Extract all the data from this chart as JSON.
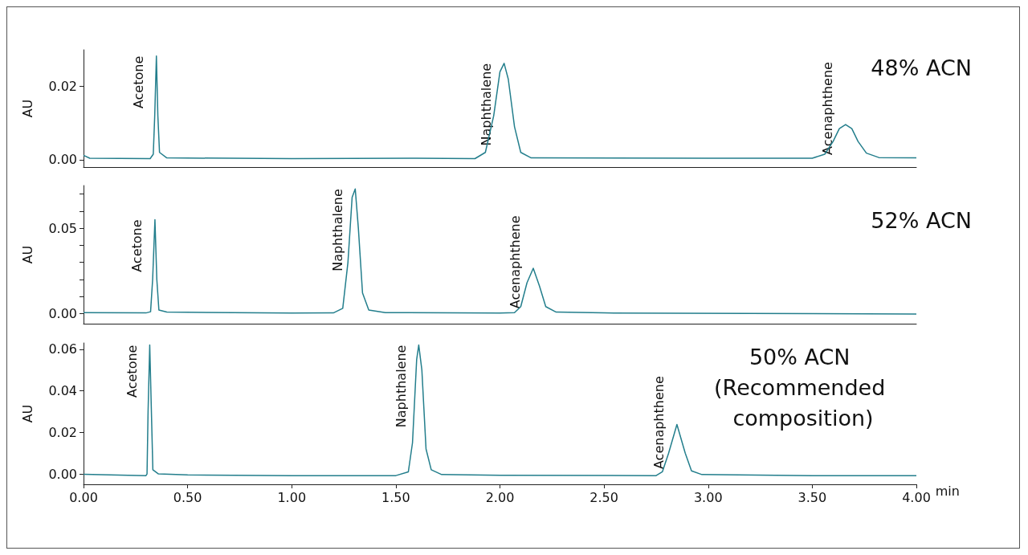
{
  "chart_data": [
    {
      "type": "line",
      "title": "48% ACN",
      "ylabel": "AU",
      "tick_labels": "y",
      "xlim": [
        0,
        4
      ],
      "ylim": [
        -0.002,
        0.03
      ],
      "yticks": [
        {
          "value": 0,
          "label": "0.00"
        },
        {
          "value": 0.02,
          "label": "0.02"
        }
      ],
      "series": [
        {
          "color": "#237e8c",
          "x": [
            0,
            0.03,
            0.32,
            0.335,
            0.342,
            0.35,
            0.357,
            0.365,
            0.4,
            1.0,
            1.6,
            1.88,
            1.93,
            1.97,
            2.0,
            2.02,
            2.04,
            2.07,
            2.1,
            2.15,
            3.0,
            3.5,
            3.56,
            3.6,
            3.63,
            3.66,
            3.69,
            3.72,
            3.76,
            3.82,
            4.0
          ],
          "values": [
            0.0012,
            0.0004,
            0.0003,
            0.0015,
            0.012,
            0.0283,
            0.012,
            0.002,
            0.0005,
            0.0003,
            0.0004,
            0.0003,
            0.002,
            0.012,
            0.024,
            0.0263,
            0.022,
            0.009,
            0.002,
            0.0005,
            0.0004,
            0.0004,
            0.0015,
            0.005,
            0.0085,
            0.0096,
            0.0085,
            0.005,
            0.0018,
            0.0006,
            0.0005
          ]
        }
      ],
      "annotations": [
        {
          "text": "Acetone",
          "x": 0.35,
          "y": 0.0283
        },
        {
          "text": "Naphthalene",
          "x": 2.02,
          "y": 0.0263
        },
        {
          "text": "Acenaphthene",
          "x": 3.66,
          "y": 0.0096
        }
      ]
    },
    {
      "type": "line",
      "title": "52% ACN",
      "ylabel": "AU",
      "tick_labels": "y",
      "xlim": [
        0,
        4
      ],
      "ylim": [
        -0.006,
        0.075
      ],
      "yticks": [
        {
          "value": 0,
          "label": "0.00"
        },
        {
          "value": 0.01,
          "label": null
        },
        {
          "value": 0.02,
          "label": null
        },
        {
          "value": 0.03,
          "label": null
        },
        {
          "value": 0.04,
          "label": null
        },
        {
          "value": 0.05,
          "label": "0.05"
        },
        {
          "value": 0.06,
          "label": null
        },
        {
          "value": 0.07,
          "label": null
        }
      ],
      "series": [
        {
          "color": "#237e8c",
          "x": [
            0,
            0.3,
            0.322,
            0.332,
            0.343,
            0.352,
            0.362,
            0.4,
            1.0,
            1.2,
            1.245,
            1.27,
            1.29,
            1.305,
            1.32,
            1.34,
            1.37,
            1.45,
            2.0,
            2.07,
            2.1,
            2.13,
            2.16,
            2.19,
            2.22,
            2.27,
            2.5,
            4.0
          ],
          "values": [
            0.0005,
            0.0003,
            0.001,
            0.02,
            0.055,
            0.02,
            0.002,
            0.0008,
            0.0002,
            0.0003,
            0.003,
            0.03,
            0.068,
            0.073,
            0.05,
            0.012,
            0.002,
            0.0005,
            0.0002,
            0.0005,
            0.004,
            0.018,
            0.0265,
            0.016,
            0.004,
            0.0008,
            0.0003,
            -0.0003
          ]
        }
      ],
      "annotations": [
        {
          "text": "Acetone",
          "x": 0.343,
          "y": 0.055
        },
        {
          "text": "Naphthalene",
          "x": 1.305,
          "y": 0.073
        },
        {
          "text": "Acenaphthene",
          "x": 2.16,
          "y": 0.0265
        }
      ]
    },
    {
      "type": "line",
      "title": "50% ACN (Recommended composition)",
      "xlabel": "min",
      "ylabel": "AU",
      "xlim": [
        0,
        4
      ],
      "ylim": [
        -0.005,
        0.063
      ],
      "xticks": [
        {
          "value": 0,
          "label": "0.00"
        },
        {
          "value": 0.5,
          "label": "0.50"
        },
        {
          "value": 1,
          "label": "1.00"
        },
        {
          "value": 1.5,
          "label": "1.50"
        },
        {
          "value": 2,
          "label": "2.00"
        },
        {
          "value": 2.5,
          "label": "2.50"
        },
        {
          "value": 3,
          "label": "3.00"
        },
        {
          "value": 3.5,
          "label": "3.50"
        },
        {
          "value": 4,
          "label": "4.00"
        }
      ],
      "yticks": [
        {
          "value": 0,
          "label": "0.00"
        },
        {
          "value": 0.02,
          "label": "0.02"
        },
        {
          "value": 0.04,
          "label": "0.04"
        },
        {
          "value": 0.06,
          "label": "0.06"
        }
      ],
      "series": [
        {
          "color": "#237e8c",
          "x": [
            0,
            0.3,
            0.305,
            0.31,
            0.318,
            0.326,
            0.333,
            0.36,
            0.5,
            1.0,
            1.5,
            1.56,
            1.58,
            1.6,
            1.61,
            1.625,
            1.645,
            1.67,
            1.72,
            2.0,
            2.75,
            2.78,
            2.81,
            2.85,
            2.89,
            2.92,
            2.97,
            3.5,
            4.0
          ],
          "values": [
            -0.0002,
            -0.0008,
            0.0,
            0.03,
            0.062,
            0.03,
            0.002,
            0.0,
            -0.0005,
            -0.0008,
            -0.0008,
            0.001,
            0.015,
            0.055,
            0.062,
            0.05,
            0.012,
            0.002,
            -0.0003,
            -0.0007,
            -0.0008,
            0.001,
            0.01,
            0.0238,
            0.01,
            0.0015,
            -0.0003,
            -0.0008,
            -0.0008
          ]
        }
      ],
      "annotations": [
        {
          "text": "Acetone",
          "x": 0.318,
          "y": 0.062
        },
        {
          "text": "Naphthalene",
          "x": 1.61,
          "y": 0.062
        },
        {
          "text": "Acenaphthene",
          "x": 2.85,
          "y": 0.0238
        }
      ]
    }
  ]
}
